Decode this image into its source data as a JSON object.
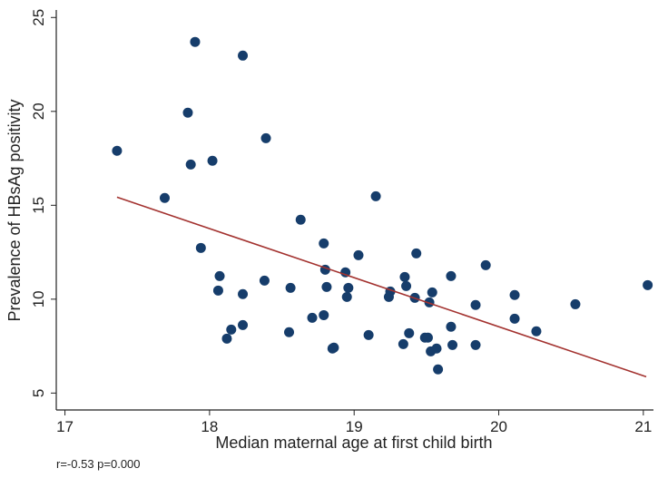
{
  "chart_data": {
    "type": "scatter",
    "xlabel": "Median maternal age at first child birth",
    "ylabel": "Prevalence of HBsAg positivity",
    "note": "r=-0.53 p=0.000",
    "color": "#163d6b",
    "x": [
      17.36,
      17.69,
      17.9,
      17.85,
      17.87,
      17.94,
      18.02,
      18.07,
      18.06,
      18.12,
      18.15,
      18.23,
      18.23,
      18.23,
      18.39,
      18.38,
      18.55,
      18.56,
      18.63,
      18.71,
      18.79,
      18.8,
      18.81,
      18.79,
      18.85,
      18.86,
      18.94,
      18.96,
      18.95,
      19.03,
      19.1,
      19.15,
      19.25,
      19.24,
      19.35,
      19.36,
      19.34,
      19.38,
      19.43,
      19.42,
      19.49,
      19.51,
      19.53,
      19.54,
      19.52,
      19.57,
      19.58,
      19.67,
      19.67,
      19.68,
      19.84,
      19.84,
      19.91,
      20.11,
      20.11,
      20.26,
      20.53,
      21.03
    ],
    "values": [
      17.9,
      15.39,
      23.7,
      19.93,
      17.17,
      12.73,
      17.37,
      11.23,
      10.46,
      7.9,
      8.38,
      22.97,
      10.27,
      8.62,
      18.57,
      10.99,
      8.24,
      10.6,
      14.23,
      9.01,
      12.97,
      11.57,
      10.65,
      9.15,
      7.37,
      7.42,
      11.43,
      10.6,
      10.12,
      12.34,
      8.09,
      15.48,
      10.41,
      10.12,
      11.18,
      10.7,
      7.61,
      8.19,
      12.44,
      10.07,
      7.95,
      7.95,
      7.22,
      10.36,
      9.83,
      7.37,
      6.26,
      11.23,
      8.53,
      7.56,
      9.69,
      7.56,
      11.81,
      10.22,
      8.96,
      8.29,
      9.73,
      10.75
    ],
    "fit": {
      "x": [
        17.36,
        21.02
      ],
      "values": [
        15.43,
        5.87
      ],
      "color": "#a3322f"
    },
    "xlim": [
      16.94,
      21.07
    ],
    "xticks": [
      17,
      18,
      19,
      20,
      21
    ],
    "ylim": [
      4.1,
      25.4
    ],
    "yticks": [
      5,
      10,
      15,
      20,
      25
    ],
    "grid": false
  }
}
